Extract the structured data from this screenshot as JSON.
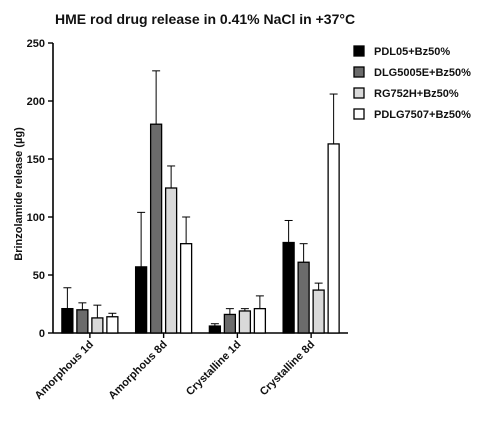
{
  "chart_data": {
    "type": "bar",
    "title": "HME rod drug release in 0.41% NaCl in +37°C",
    "xlabel": "",
    "ylabel": "Brinzolamide release  (µg)",
    "ylim": [
      0,
      250
    ],
    "yticks": [
      0,
      50,
      100,
      150,
      200,
      250
    ],
    "categories": [
      "Amorphous 1d",
      "Amorphous 8d",
      "Crystalline 1d",
      "Crystalline 8d"
    ],
    "legend_position": "top-right",
    "grid": false,
    "error_bars": "one-sided (upper)",
    "series": [
      {
        "name": "PDL05+Bz50%",
        "fill": "#000000",
        "values": [
          21,
          57,
          6,
          78
        ],
        "errors": [
          18,
          47,
          2,
          19
        ]
      },
      {
        "name": "DLG5005E+Bz50%",
        "fill": "#6b6b6b",
        "values": [
          20,
          180,
          16,
          61
        ],
        "errors": [
          6,
          46,
          5,
          16
        ]
      },
      {
        "name": "RG752H+Bz50%",
        "fill": "#d9d9d9",
        "values": [
          13,
          125,
          19,
          37
        ],
        "errors": [
          11,
          19,
          2,
          6
        ]
      },
      {
        "name": "PDLG7507+Bz50%",
        "fill": "#ffffff",
        "values": [
          14,
          77,
          21,
          163
        ],
        "errors": [
          3,
          23,
          11,
          43
        ]
      }
    ]
  }
}
